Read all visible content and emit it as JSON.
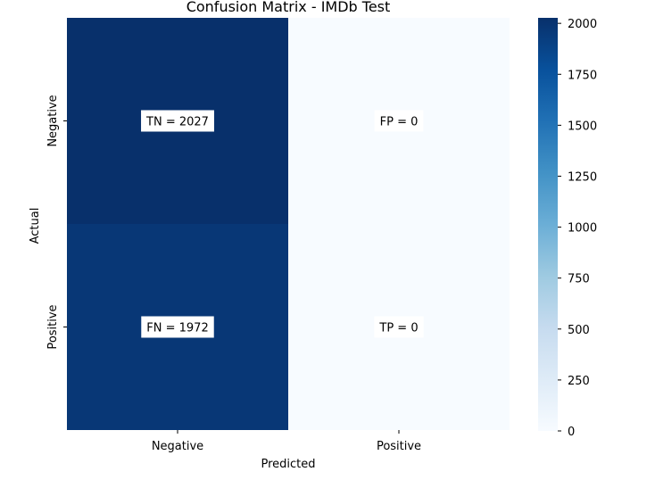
{
  "chart_data": {
    "type": "heatmap",
    "title": "Confusion Matrix - IMDb Test",
    "xlabel": "Predicted",
    "ylabel": "Actual",
    "x_categories": [
      "Negative",
      "Positive"
    ],
    "y_categories": [
      "Negative",
      "Positive"
    ],
    "values": [
      [
        2027,
        0
      ],
      [
        1972,
        0
      ]
    ],
    "annotations": [
      [
        "TN = 2027",
        "FP = 0"
      ],
      [
        "FN = 1972",
        "TP = 0"
      ]
    ],
    "colormap": "Blues",
    "colorbar": {
      "range": [
        0,
        2027
      ],
      "ticks": [
        0,
        250,
        500,
        750,
        1000,
        1250,
        1500,
        1750,
        2000
      ],
      "tick_labels": [
        "0",
        "250",
        "500",
        "750",
        "1000",
        "1250",
        "1500",
        "1750",
        "2000"
      ]
    }
  }
}
